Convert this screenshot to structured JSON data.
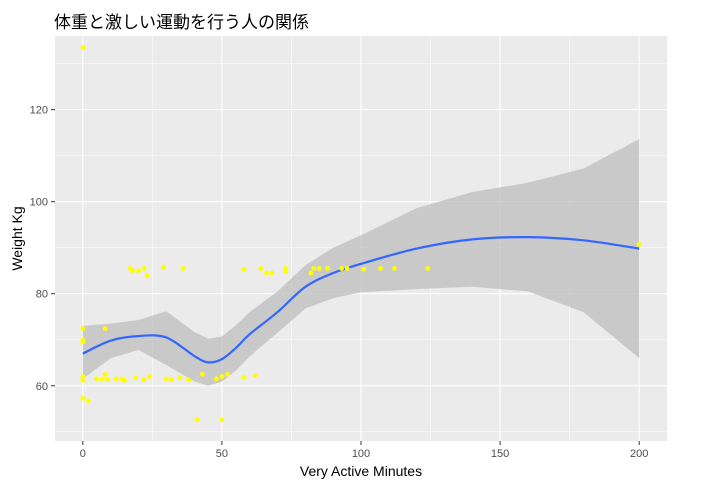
{
  "chart_data": {
    "type": "scatter",
    "title": "体重と激しい運動を行う人の関係",
    "xlabel": "Very Active Minutes",
    "ylabel": "Weight Kg",
    "xlim": [
      -10,
      210
    ],
    "ylim": [
      48,
      136
    ],
    "xticks": [
      0,
      50,
      100,
      150,
      200
    ],
    "yticks": [
      60,
      80,
      100,
      120
    ],
    "grid": true,
    "colors": {
      "panel": "#ebebeb",
      "grid": "#ffffff",
      "points": "#ffff00",
      "smooth_line": "#3366ff",
      "confidence_band": "#bebebe"
    },
    "points": [
      {
        "x": 0,
        "y": 133.5
      },
      {
        "x": 0,
        "y": 72.4
      },
      {
        "x": 0,
        "y": 70.0
      },
      {
        "x": 0,
        "y": 69.5
      },
      {
        "x": 0,
        "y": 62.0
      },
      {
        "x": 0,
        "y": 61.2
      },
      {
        "x": 0,
        "y": 57.3
      },
      {
        "x": 2,
        "y": 56.7
      },
      {
        "x": 5,
        "y": 61.5
      },
      {
        "x": 7,
        "y": 61.5
      },
      {
        "x": 8,
        "y": 62.5
      },
      {
        "x": 8,
        "y": 72.4
      },
      {
        "x": 9,
        "y": 61.3
      },
      {
        "x": 12,
        "y": 61.5
      },
      {
        "x": 14,
        "y": 61.5
      },
      {
        "x": 15,
        "y": 61.2
      },
      {
        "x": 17,
        "y": 85.5
      },
      {
        "x": 18,
        "y": 85.0
      },
      {
        "x": 19,
        "y": 61.8
      },
      {
        "x": 20,
        "y": 85.0
      },
      {
        "x": 22,
        "y": 61.3
      },
      {
        "x": 22,
        "y": 85.5
      },
      {
        "x": 23,
        "y": 84.0
      },
      {
        "x": 24,
        "y": 62.0
      },
      {
        "x": 29,
        "y": 85.8
      },
      {
        "x": 30,
        "y": 61.5
      },
      {
        "x": 32,
        "y": 61.3
      },
      {
        "x": 35,
        "y": 61.8
      },
      {
        "x": 36,
        "y": 85.5
      },
      {
        "x": 38,
        "y": 61.3
      },
      {
        "x": 41,
        "y": 52.6
      },
      {
        "x": 43,
        "y": 62.5
      },
      {
        "x": 48,
        "y": 61.5
      },
      {
        "x": 50,
        "y": 52.6
      },
      {
        "x": 50,
        "y": 62.0
      },
      {
        "x": 52,
        "y": 62.5
      },
      {
        "x": 58,
        "y": 61.8
      },
      {
        "x": 58,
        "y": 85.3
      },
      {
        "x": 62,
        "y": 62.3
      },
      {
        "x": 64,
        "y": 85.5
      },
      {
        "x": 66,
        "y": 84.5
      },
      {
        "x": 68,
        "y": 84.5
      },
      {
        "x": 73,
        "y": 85.5
      },
      {
        "x": 73,
        "y": 84.8
      },
      {
        "x": 82,
        "y": 84.5
      },
      {
        "x": 83,
        "y": 85.5
      },
      {
        "x": 85,
        "y": 85.5
      },
      {
        "x": 88,
        "y": 85.5
      },
      {
        "x": 93,
        "y": 85.5
      },
      {
        "x": 95,
        "y": 85.5
      },
      {
        "x": 101,
        "y": 85.3
      },
      {
        "x": 107,
        "y": 85.5
      },
      {
        "x": 112,
        "y": 85.5
      },
      {
        "x": 124,
        "y": 85.5
      },
      {
        "x": 200,
        "y": 90.7
      }
    ],
    "smooth": {
      "x": [
        0,
        10,
        20,
        30,
        40,
        45,
        50,
        55,
        60,
        70,
        80,
        90,
        100,
        120,
        140,
        160,
        180,
        200
      ],
      "y": [
        67.0,
        69.8,
        70.8,
        70.5,
        66.5,
        65.1,
        65.8,
        68.2,
        71.2,
        76.0,
        81.5,
        84.5,
        86.5,
        89.8,
        91.8,
        92.3,
        91.6,
        89.8
      ],
      "lower": [
        61.5,
        66.0,
        67.8,
        64.5,
        61.0,
        60.0,
        60.9,
        63.3,
        66.4,
        71.5,
        76.8,
        79.0,
        80.3,
        81.0,
        81.5,
        80.5,
        76.0,
        66.0
      ],
      "upper": [
        73.0,
        73.5,
        74.3,
        76.2,
        71.7,
        70.2,
        70.7,
        73.1,
        76.0,
        80.5,
        86.2,
        90.0,
        92.7,
        98.6,
        102.1,
        104.1,
        107.2,
        113.6
      ]
    }
  }
}
